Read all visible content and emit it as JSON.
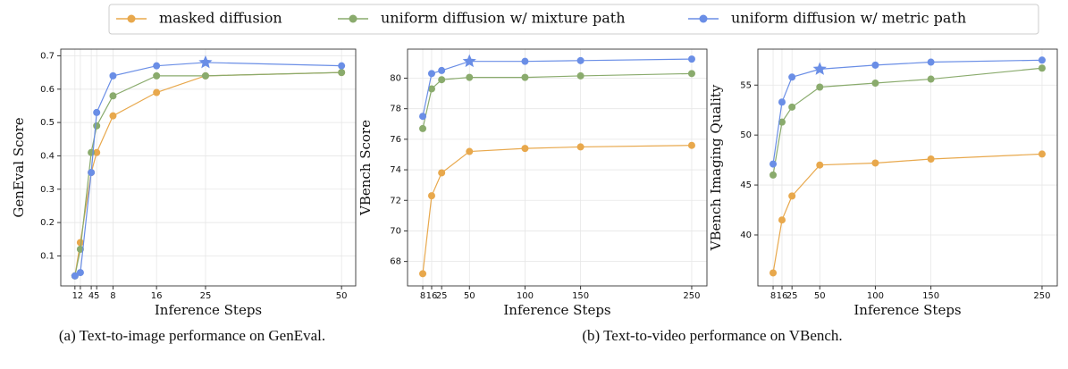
{
  "chart_data": [
    {
      "type": "line",
      "xlabel": "Inference Steps",
      "ylabel": "GenEval Score",
      "x": [
        1,
        2,
        4,
        5,
        8,
        16,
        25,
        50
      ],
      "xlim": [
        -1.6,
        52.6
      ],
      "xticks": [
        1,
        2,
        4,
        5,
        8,
        16,
        25,
        50
      ],
      "ylim": [
        0.01,
        0.72
      ],
      "yticks": [
        0.1,
        0.2,
        0.3,
        0.4,
        0.5,
        0.6,
        0.7
      ],
      "grid": true,
      "series": [
        {
          "name": "masked diffusion",
          "color": "#e8a84c",
          "values": [
            0.04,
            0.14,
            0.35,
            0.41,
            0.52,
            0.59,
            0.64,
            0.65
          ]
        },
        {
          "name": "uniform diffusion w/ mixture path",
          "color": "#8aab6d",
          "values": [
            0.04,
            0.12,
            0.41,
            0.49,
            0.58,
            0.64,
            0.64,
            0.65
          ]
        },
        {
          "name": "uniform diffusion w/ metric path",
          "color": "#6a8ee6",
          "values": [
            0.04,
            0.05,
            0.35,
            0.53,
            0.64,
            0.67,
            0.68,
            0.67
          ],
          "star_x": 25
        }
      ]
    },
    {
      "type": "line",
      "xlabel": "Inference Steps",
      "ylabel": "VBench Score",
      "x": [
        8,
        16,
        25,
        50,
        100,
        150,
        250
      ],
      "xlim": [
        -5.7,
        263.7
      ],
      "xticks": [
        8,
        16,
        25,
        50,
        100,
        150,
        250
      ],
      "ylim": [
        66.4,
        81.9
      ],
      "yticks": [
        68,
        70,
        72,
        74,
        76,
        78,
        80
      ],
      "grid": true,
      "series": [
        {
          "color": "#e8a84c",
          "values": [
            67.2,
            72.3,
            73.8,
            75.2,
            75.4,
            75.5,
            75.6
          ]
        },
        {
          "color": "#8aab6d",
          "values": [
            76.7,
            79.3,
            79.9,
            80.05,
            80.05,
            80.15,
            80.3
          ]
        },
        {
          "color": "#6a8ee6",
          "values": [
            77.5,
            80.3,
            80.5,
            81.1,
            81.1,
            81.15,
            81.25
          ],
          "star_x": 50
        }
      ]
    },
    {
      "type": "line",
      "xlabel": "Inference Steps",
      "ylabel": "VBench Imaging Quality",
      "x": [
        8,
        16,
        25,
        50,
        100,
        150,
        250
      ],
      "xlim": [
        -5.7,
        263.7
      ],
      "xticks": [
        8,
        16,
        25,
        50,
        100,
        150,
        250
      ],
      "ylim": [
        34.9,
        58.6
      ],
      "yticks": [
        40,
        45,
        50,
        55
      ],
      "grid": true,
      "series": [
        {
          "color": "#e8a84c",
          "values": [
            36.2,
            41.5,
            43.9,
            47.0,
            47.2,
            47.6,
            48.1
          ]
        },
        {
          "color": "#8aab6d",
          "values": [
            46.0,
            51.3,
            52.8,
            54.8,
            55.2,
            55.6,
            56.7
          ]
        },
        {
          "color": "#6a8ee6",
          "values": [
            47.1,
            53.3,
            55.8,
            56.6,
            57.0,
            57.3,
            57.5
          ],
          "star_x": 50
        }
      ]
    }
  ],
  "captions": [
    "(a) Text-to-image performance on GenEval.",
    "(b) Text-to-video performance on VBench."
  ]
}
